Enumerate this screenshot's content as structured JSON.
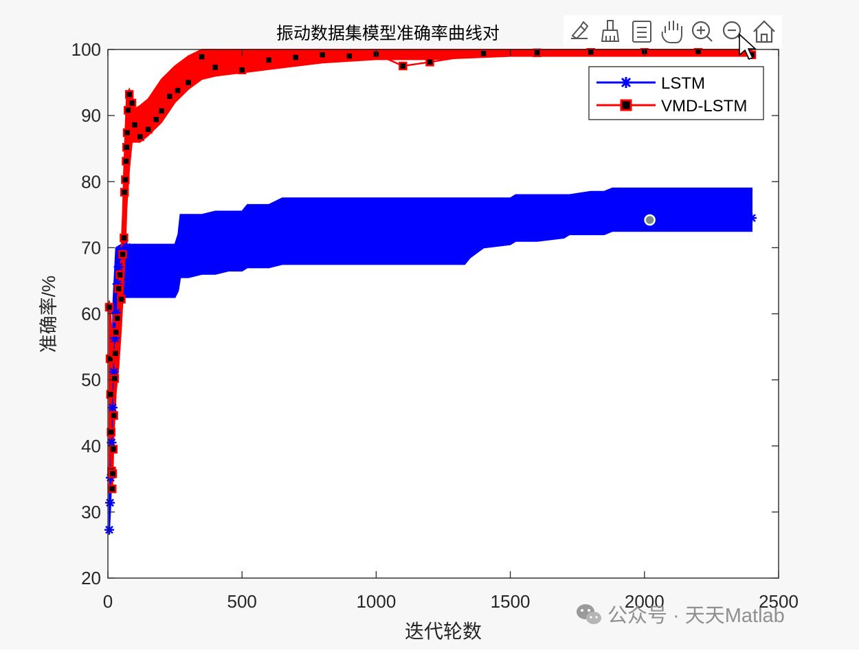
{
  "figure": {
    "background": "#f7f7f7",
    "axes_background": "#ffffff",
    "toolbar": {
      "icons": [
        "brush-icon",
        "eraser-icon",
        "legend-list-icon",
        "pan-hand-icon",
        "zoom-in-icon",
        "zoom-out-icon",
        "home-icon"
      ]
    },
    "watermark": "公众号 · 天天Matlab"
  },
  "chart_data": {
    "type": "line",
    "title": "振动数据集模型准确率曲线对",
    "xlabel": "迭代轮数",
    "ylabel": "准确率/%",
    "xlim": [
      0,
      2500
    ],
    "ylim": [
      20,
      100
    ],
    "xticks": [
      0,
      500,
      1000,
      1500,
      2000,
      2500
    ],
    "yticks": [
      20,
      30,
      40,
      50,
      60,
      70,
      80,
      90,
      100
    ],
    "grid": false,
    "legend": {
      "location": "top-right"
    },
    "series": [
      {
        "name": "LSTM",
        "color": "#0000ff",
        "marker": "star",
        "band": {
          "x": [
            5,
            10,
            15,
            20,
            30,
            50,
            80,
            150,
            250,
            262,
            270,
            300,
            350,
            400,
            450,
            500,
            520,
            600,
            650,
            700,
            800,
            900,
            1000,
            1100,
            1200,
            1300,
            1330,
            1350,
            1400,
            1500,
            1520,
            1600,
            1700,
            1720,
            1800,
            1850,
            1880,
            1900,
            2000,
            2100,
            2200,
            2300,
            2400
          ],
          "lower": [
            27,
            31,
            38,
            52,
            60,
            62.5,
            62.5,
            62.5,
            62.5,
            63.5,
            65.5,
            65.5,
            66,
            66,
            66.5,
            66.5,
            67,
            67,
            67.5,
            67.5,
            67.5,
            67.5,
            67.5,
            67.5,
            67.5,
            67.5,
            67.5,
            68.5,
            70,
            70.5,
            71,
            71,
            71.5,
            72,
            72,
            72,
            72.5,
            72.5,
            72.5,
            72.5,
            72.5,
            72.5,
            72.5
          ],
          "upper": [
            35,
            40,
            50,
            62,
            70,
            70.5,
            70.5,
            70.5,
            70.5,
            72,
            75,
            75,
            75,
            75.5,
            75.5,
            75.5,
            76.5,
            76.5,
            77.5,
            77.5,
            77.5,
            77.5,
            77.5,
            77.5,
            77.5,
            77.5,
            77.5,
            77.5,
            77.5,
            77.5,
            78,
            78,
            78,
            78,
            78.5,
            78.5,
            79,
            79,
            79,
            79,
            79,
            79,
            79
          ]
        },
        "points": [
          [
            5,
            27.3
          ],
          [
            8,
            31.4
          ],
          [
            10,
            35.2
          ],
          [
            14,
            40.5
          ],
          [
            18,
            45.8
          ],
          [
            22,
            51.2
          ],
          [
            26,
            56.3
          ],
          [
            30,
            60.2
          ],
          [
            35,
            64.5
          ],
          [
            40,
            67.1
          ],
          [
            45,
            68.8
          ],
          [
            55,
            69.6
          ],
          [
            70,
            70.1
          ],
          [
            100,
            66.8
          ],
          [
            150,
            68.4
          ],
          [
            200,
            65.9
          ],
          [
            260,
            67.2
          ],
          [
            300,
            73.4
          ],
          [
            400,
            74.2
          ],
          [
            500,
            72.0
          ],
          [
            600,
            74.6
          ],
          [
            700,
            73.1
          ],
          [
            800,
            75.0
          ],
          [
            900,
            72.8
          ],
          [
            1000,
            74.1
          ],
          [
            1100,
            73.5
          ],
          [
            1200,
            75.2
          ],
          [
            1300,
            73.0
          ],
          [
            1400,
            74.4
          ],
          [
            1500,
            75.1
          ],
          [
            1600,
            73.8
          ],
          [
            1700,
            75.6
          ],
          [
            1800,
            74.9
          ],
          [
            1900,
            76.2
          ],
          [
            2000,
            74.3
          ],
          [
            2100,
            75.8
          ],
          [
            2200,
            74.6
          ],
          [
            2300,
            76.0
          ],
          [
            2400,
            74.5
          ]
        ]
      },
      {
        "name": "VMD-LSTM",
        "color": "#ff0000",
        "marker": "square",
        "band": {
          "x": [
            5,
            10,
            15,
            20,
            25,
            30,
            40,
            50,
            55,
            60,
            65,
            70,
            80,
            90,
            100,
            120,
            150,
            200,
            250,
            300,
            350,
            400,
            500,
            600,
            700,
            800,
            1000,
            1200,
            1500,
            2000,
            2400
          ],
          "lower": [
            33,
            36,
            38,
            40,
            44,
            48,
            52,
            58,
            62,
            66,
            70,
            76,
            82,
            86,
            86,
            86,
            87,
            89,
            92,
            94,
            95.5,
            96,
            96.5,
            97,
            97.5,
            98,
            98.5,
            98.5,
            99,
            99,
            99
          ],
          "upper": [
            62,
            60,
            57,
            55,
            56,
            59,
            64,
            70,
            75,
            82,
            88,
            93,
            94,
            93,
            91,
            91.5,
            92.5,
            95.5,
            97.5,
            99,
            100,
            100,
            100,
            100,
            100,
            100,
            100,
            100,
            100,
            100,
            100
          ]
        },
        "points": [
          [
            5,
            61.0
          ],
          [
            8,
            53.2
          ],
          [
            10,
            47.8
          ],
          [
            12,
            42.1
          ],
          [
            14,
            36.2
          ],
          [
            16,
            33.5
          ],
          [
            18,
            35.8
          ],
          [
            20,
            39.5
          ],
          [
            22,
            44.6
          ],
          [
            25,
            50.2
          ],
          [
            28,
            54.0
          ],
          [
            30,
            57.2
          ],
          [
            35,
            59.3
          ],
          [
            40,
            63.8
          ],
          [
            45,
            65.9
          ],
          [
            50,
            62.2
          ],
          [
            55,
            69.0
          ],
          [
            60,
            71.5
          ],
          [
            62,
            78.4
          ],
          [
            65,
            80.3
          ],
          [
            68,
            83.1
          ],
          [
            70,
            85.2
          ],
          [
            72,
            87.4
          ],
          [
            75,
            90.8
          ],
          [
            80,
            93.2
          ],
          [
            90,
            91.9
          ],
          [
            100,
            88.6
          ],
          [
            120,
            86.8
          ],
          [
            150,
            87.9
          ],
          [
            180,
            89.4
          ],
          [
            200,
            90.7
          ],
          [
            230,
            92.9
          ],
          [
            260,
            93.8
          ],
          [
            300,
            95.0
          ],
          [
            350,
            98.9
          ],
          [
            400,
            97.3
          ],
          [
            500,
            96.9
          ],
          [
            600,
            98.4
          ],
          [
            700,
            98.8
          ],
          [
            800,
            99.2
          ],
          [
            900,
            99.0
          ],
          [
            1000,
            99.3
          ],
          [
            1100,
            97.5
          ],
          [
            1200,
            98.1
          ],
          [
            1400,
            99.4
          ],
          [
            1600,
            99.5
          ],
          [
            1800,
            99.6
          ],
          [
            2000,
            99.7
          ],
          [
            2200,
            99.7
          ],
          [
            2400,
            99.2
          ]
        ]
      }
    ],
    "annotations": [
      {
        "type": "data-tip-marker",
        "x": 2020,
        "y": 74.2
      }
    ]
  }
}
